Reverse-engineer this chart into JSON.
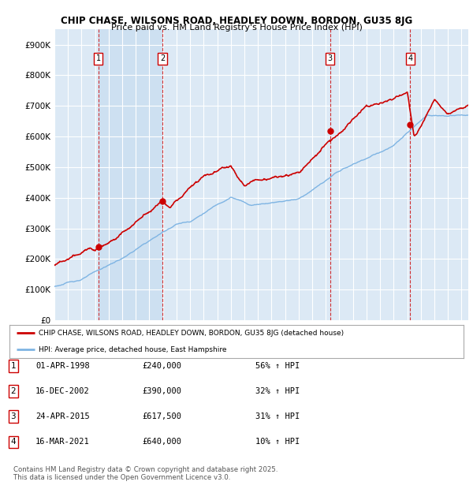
{
  "title1": "CHIP CHASE, WILSONS ROAD, HEADLEY DOWN, BORDON, GU35 8JG",
  "title2": "Price paid vs. HM Land Registry's House Price Index (HPI)",
  "background_color": "#ffffff",
  "chart_bg_color": "#dce9f5",
  "grid_color": "#ffffff",
  "hpi_line_color": "#7eb4e3",
  "price_line_color": "#cc0000",
  "sale_dates": [
    1998.25,
    2002.96,
    2015.31,
    2021.21
  ],
  "sale_prices": [
    240000,
    390000,
    617500,
    640000
  ],
  "sale_labels": [
    "1",
    "2",
    "3",
    "4"
  ],
  "legend_line1": "CHIP CHASE, WILSONS ROAD, HEADLEY DOWN, BORDON, GU35 8JG (detached house)",
  "legend_line2": "HPI: Average price, detached house, East Hampshire",
  "transactions": [
    {
      "num": "1",
      "date": "01-APR-1998",
      "price": "£240,000",
      "hpi": "56% ↑ HPI"
    },
    {
      "num": "2",
      "date": "16-DEC-2002",
      "price": "£390,000",
      "hpi": "32% ↑ HPI"
    },
    {
      "num": "3",
      "date": "24-APR-2015",
      "price": "£617,500",
      "hpi": "31% ↑ HPI"
    },
    {
      "num": "4",
      "date": "16-MAR-2021",
      "price": "£640,000",
      "hpi": "10% ↑ HPI"
    }
  ],
  "footer": "Contains HM Land Registry data © Crown copyright and database right 2025.\nThis data is licensed under the Open Government Licence v3.0."
}
